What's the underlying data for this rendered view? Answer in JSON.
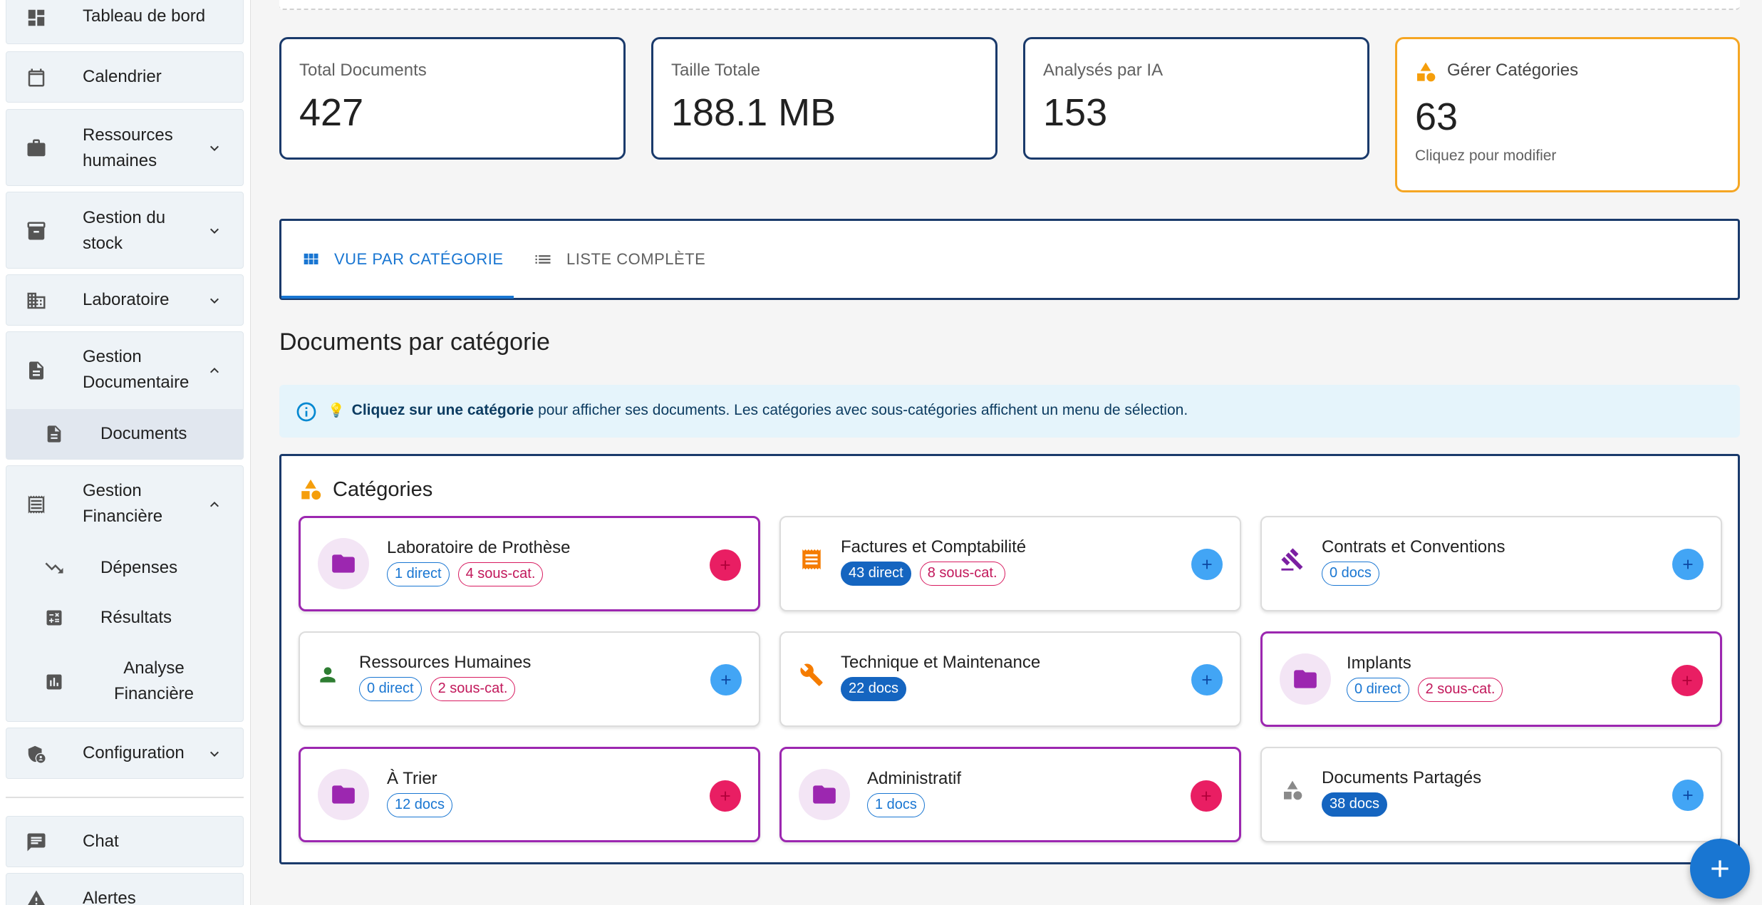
{
  "sidebar": {
    "items": [
      {
        "label": "Tableau de bord",
        "icon": "dashboard-icon"
      },
      {
        "label": "Calendrier",
        "icon": "calendar-icon"
      },
      {
        "label": "Ressources humaines",
        "icon": "briefcase-icon"
      },
      {
        "label": "Gestion du stock",
        "icon": "archive-icon"
      },
      {
        "label": "Laboratoire",
        "icon": "building-icon"
      },
      {
        "label": "Gestion Documentaire",
        "icon": "document-icon"
      },
      {
        "label": "Gestion Financière",
        "icon": "receipt-icon"
      },
      {
        "label": "Configuration",
        "icon": "admin-shield-icon"
      },
      {
        "label": "Chat",
        "icon": "chat-icon"
      },
      {
        "label": "Alertes",
        "icon": "warning-icon"
      }
    ],
    "docs_sub": [
      {
        "label": "Documents",
        "icon": "document-icon"
      }
    ],
    "finance_sub": [
      {
        "label": "Dépenses",
        "icon": "trending-down-icon"
      },
      {
        "label": "Résultats",
        "icon": "calculator-icon"
      },
      {
        "label": "Analyse Financière",
        "icon": "bar-chart-icon"
      }
    ]
  },
  "stats": [
    {
      "title": "Total Documents",
      "value": "427"
    },
    {
      "title": "Taille Totale",
      "value": "188.1 MB"
    },
    {
      "title": "Analysés par IA",
      "value": "153"
    },
    {
      "title": "Gérer Catégories",
      "value": "63",
      "hint": "Cliquez pour modifier"
    }
  ],
  "tabs": [
    {
      "label": "VUE PAR CATÉGORIE",
      "icon": "grid-icon"
    },
    {
      "label": "LISTE COMPLÈTE",
      "icon": "list-icon"
    }
  ],
  "section_title": "Documents par catégorie",
  "info": {
    "emoji": "💡",
    "bold": "Cliquez sur une catégorie",
    "rest": " pour afficher ses documents. Les catégories avec sous-catégories affichent un menu de sélection."
  },
  "categories_title": "Catégories",
  "categories": [
    {
      "name": "Laboratoire de Prothèse",
      "chips": [
        "1 direct",
        "4 sous-cat."
      ],
      "icon": "folder-icon"
    },
    {
      "name": "Factures et Comptabilité",
      "chips": [
        "43 direct",
        "8 sous-cat."
      ],
      "icon": "receipt-icon"
    },
    {
      "name": "Contrats et Conventions",
      "chips": [
        "0 docs"
      ],
      "icon": "gavel-icon"
    },
    {
      "name": "Ressources Humaines",
      "chips": [
        "0 direct",
        "2 sous-cat."
      ],
      "icon": "person-icon"
    },
    {
      "name": "Technique et Maintenance",
      "chips": [
        "22 docs"
      ],
      "icon": "wrench-icon"
    },
    {
      "name": "Implants",
      "chips": [
        "0 direct",
        "2 sous-cat."
      ],
      "icon": "folder-icon"
    },
    {
      "name": "À Trier",
      "chips": [
        "12 docs"
      ],
      "icon": "folder-icon"
    },
    {
      "name": "Administratif",
      "chips": [
        "1 docs"
      ],
      "icon": "folder-icon"
    },
    {
      "name": "Documents Partagés",
      "chips": [
        "38 docs"
      ],
      "icon": "shapes-icon"
    }
  ],
  "colors": {
    "accent": "#1976d2",
    "navy_border": "#1a3a6b",
    "orange": "#f5a623",
    "purple": "#9c27b0",
    "pink": "#e91e63"
  }
}
